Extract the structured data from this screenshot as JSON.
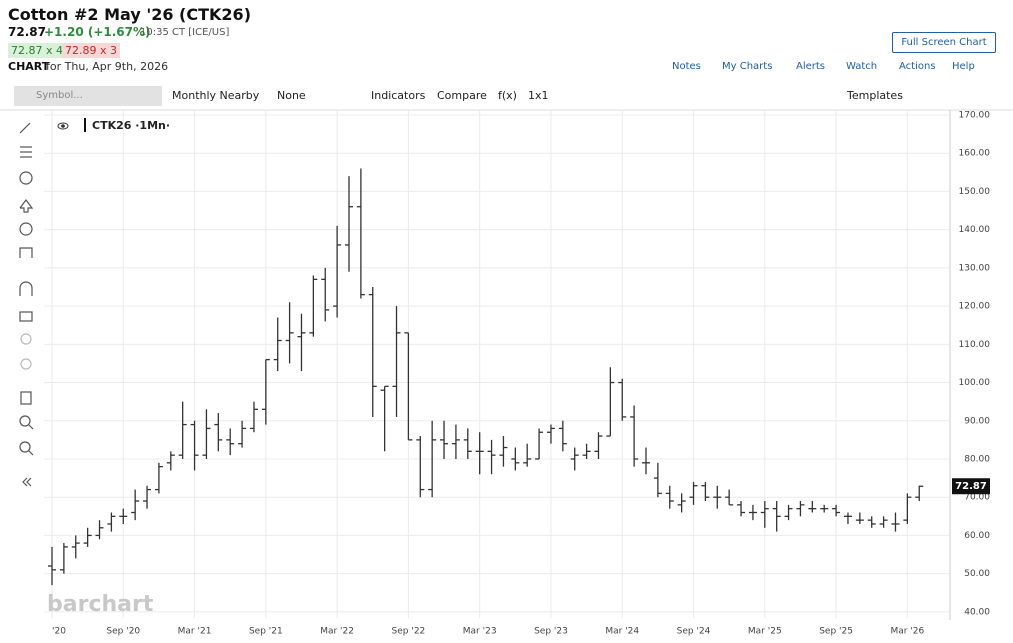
{
  "header": {
    "title": "Cotton #2 May '26 (CTK26)",
    "price": "72.87",
    "change": "+1.20 (+1.67%)",
    "time": "10:35 CT [ICE/US]",
    "bid": "72.87 x 4",
    "ask": "72.89 x 3",
    "chart_label": "CHART",
    "chart_date": "for Thu, Apr 9th, 2026",
    "full_screen": "Full Screen Chart"
  },
  "links": [
    "Notes",
    "My Charts",
    "Alerts",
    "Watch",
    "Actions",
    "Help"
  ],
  "toolbar": {
    "symbol": "Symbol...",
    "items": [
      "Monthly Nearby",
      "None",
      "Indicators",
      "Compare",
      "f(x)",
      "1x1"
    ],
    "templates": "Templates"
  },
  "watermark": "barchart",
  "chart_data": {
    "type": "ohlc",
    "categories": [
      "'20",
      null,
      null,
      null,
      null,
      null,
      "Sep '20",
      null,
      null,
      null,
      null,
      null,
      "Mar '21",
      null,
      null,
      null,
      null,
      null,
      "Sep '21",
      null,
      null,
      null,
      null,
      null,
      "Mar '22",
      null,
      null,
      null,
      null,
      null,
      "Sep '22",
      null,
      null,
      null,
      null,
      null,
      "Mar '23",
      null,
      null,
      null,
      null,
      null,
      "Sep '23",
      null,
      null,
      null,
      null,
      null,
      "Mar '24",
      null,
      null,
      null,
      null,
      null,
      "Sep '24",
      null,
      null,
      null,
      null,
      null,
      "Mar '25",
      null,
      null,
      null,
      null,
      null,
      "Sep '25",
      null,
      null,
      null,
      null,
      null,
      "Mar '26",
      null
    ],
    "series": [
      {
        "name": "CTK26 ·1Mn·",
        "color": "#333333",
        "open": [
          52,
          51,
          57,
          58,
          60,
          63,
          65,
          66,
          69,
          72,
          79,
          81,
          89,
          81,
          89,
          85,
          84,
          88,
          93,
          106,
          111,
          112,
          113,
          127,
          120,
          136,
          146,
          123,
          98,
          99,
          113,
          85,
          72,
          85,
          84,
          85,
          82,
          82,
          81,
          80,
          79,
          80,
          87,
          88,
          80,
          81,
          82,
          86,
          100,
          91,
          79,
          75,
          71,
          68,
          70,
          73,
          70,
          70,
          68,
          66,
          66,
          67,
          65,
          67,
          67,
          67,
          67,
          65,
          64,
          64,
          63,
          63,
          64,
          70
        ],
        "high": [
          57,
          58,
          60,
          62,
          64,
          66,
          67,
          72,
          73,
          79,
          82,
          95,
          90,
          93,
          92,
          88,
          90,
          95,
          106,
          117,
          121,
          118,
          128,
          130,
          141,
          154,
          156,
          125,
          99,
          120,
          113,
          86,
          90,
          90,
          89,
          88,
          87,
          85,
          86,
          83,
          84,
          88,
          89,
          90,
          83,
          84,
          87,
          104,
          101,
          94,
          83,
          79,
          73,
          71,
          74,
          74,
          73,
          72,
          69,
          68,
          69,
          69,
          68,
          69,
          69,
          68,
          68,
          66,
          66,
          65,
          65,
          66,
          71,
          73
        ],
        "low": [
          47,
          50,
          54,
          57,
          59,
          61,
          63,
          64,
          67,
          71,
          77,
          80,
          77,
          80,
          82,
          81,
          83,
          87,
          89,
          103,
          105,
          103,
          112,
          116,
          117,
          129,
          122,
          91,
          82,
          91,
          85,
          70,
          70,
          80,
          80,
          80,
          76,
          76,
          78,
          77,
          78,
          80,
          84,
          82,
          77,
          80,
          80,
          86,
          90,
          78,
          76,
          70,
          67,
          66,
          68,
          69,
          67,
          68,
          65,
          64,
          62,
          61,
          64,
          65,
          66,
          66,
          65,
          63,
          63,
          62,
          62,
          61,
          63,
          69
        ],
        "close": [
          51,
          57,
          58,
          60,
          62,
          65,
          65,
          69,
          72,
          78,
          81,
          89,
          81,
          88,
          85,
          84,
          88,
          93,
          106,
          111,
          113,
          113,
          127,
          119,
          136,
          146,
          123,
          99,
          99,
          113,
          85,
          72,
          85,
          84,
          85,
          82,
          82,
          81,
          83,
          79,
          80,
          87,
          88,
          84,
          81,
          82,
          86,
          100,
          91,
          80,
          79,
          71,
          69,
          69,
          73,
          70,
          70,
          68,
          66,
          66,
          67,
          65,
          67,
          68,
          67,
          67,
          66,
          65,
          64,
          63,
          64,
          63,
          70,
          72.87
        ]
      }
    ],
    "last_price": 72.87,
    "ylim": [
      38.4,
      171.3
    ],
    "yticks": [
      {
        "value": 40,
        "label": "40.00"
      },
      {
        "value": 50,
        "label": "50.00"
      },
      {
        "value": 60,
        "label": "60.00"
      },
      {
        "value": 70,
        "label": "70.00"
      },
      {
        "value": 80,
        "label": "80.00"
      },
      {
        "value": 90,
        "label": "90.00"
      },
      {
        "value": 100,
        "label": "100.00"
      },
      {
        "value": 110,
        "label": "110.00"
      },
      {
        "value": 120,
        "label": "120.00"
      },
      {
        "value": 130,
        "label": "130.00"
      },
      {
        "value": 140,
        "label": "140.00"
      },
      {
        "value": 150,
        "label": "150.00"
      },
      {
        "value": 160,
        "label": "160.00"
      },
      {
        "value": 170,
        "label": "170.00"
      }
    ],
    "grid": true
  }
}
